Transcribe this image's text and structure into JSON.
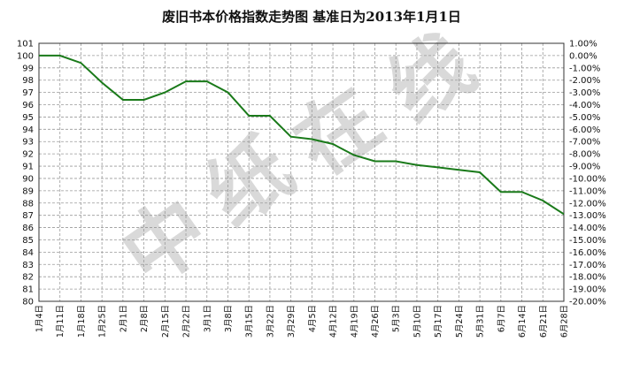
{
  "chart_data": {
    "type": "line",
    "title": "废旧书本价格指数走势图 基准日为2013年1月1日",
    "watermark": "中纸在线",
    "x": [
      "1月4日",
      "1月11日",
      "1月18日",
      "1月25日",
      "2月1日",
      "2月8日",
      "2月15日",
      "2月22日",
      "3月1日",
      "3月8日",
      "3月15日",
      "3月22日",
      "3月29日",
      "4月5日",
      "4月12日",
      "4月19日",
      "4月26日",
      "5月3日",
      "5月10日",
      "5月17日",
      "5月24日",
      "5月31日",
      "6月7日",
      "6月14日",
      "6月21日",
      "6月28日"
    ],
    "series": [
      {
        "values": [
          100,
          100,
          99.4,
          97.8,
          96.4,
          96.4,
          97,
          97.9,
          97.9,
          97,
          95.1,
          95.1,
          93.4,
          93.2,
          92.8,
          91.9,
          91.4,
          91.4,
          91.1,
          90.9,
          90.7,
          90.5,
          88.9,
          88.9,
          88.2,
          87.1
        ]
      }
    ],
    "ylim": [
      80,
      101
    ],
    "y_ticks_left": [
      "101",
      "100",
      "99",
      "98",
      "97",
      "96",
      "95",
      "94",
      "93",
      "92",
      "91",
      "90",
      "89",
      "88",
      "87",
      "86",
      "85",
      "84",
      "83",
      "82",
      "81",
      "80"
    ],
    "y_ticks_right": [
      "1.00%",
      "0.00%",
      "-1.00%",
      "-2.00%",
      "-3.00%",
      "-4.00%",
      "-5.00%",
      "-6.00%",
      "-7.00%",
      "-8.00%",
      "-9.00%",
      "-10.00%",
      "-11.00%",
      "-12.00%",
      "-13.00%",
      "-14.00%",
      "-15.00%",
      "-16.00%",
      "-17.00%",
      "-18.00%",
      "-19.00%",
      "-20.00%"
    ],
    "grid": true,
    "line_color": "#1a7a1a"
  }
}
